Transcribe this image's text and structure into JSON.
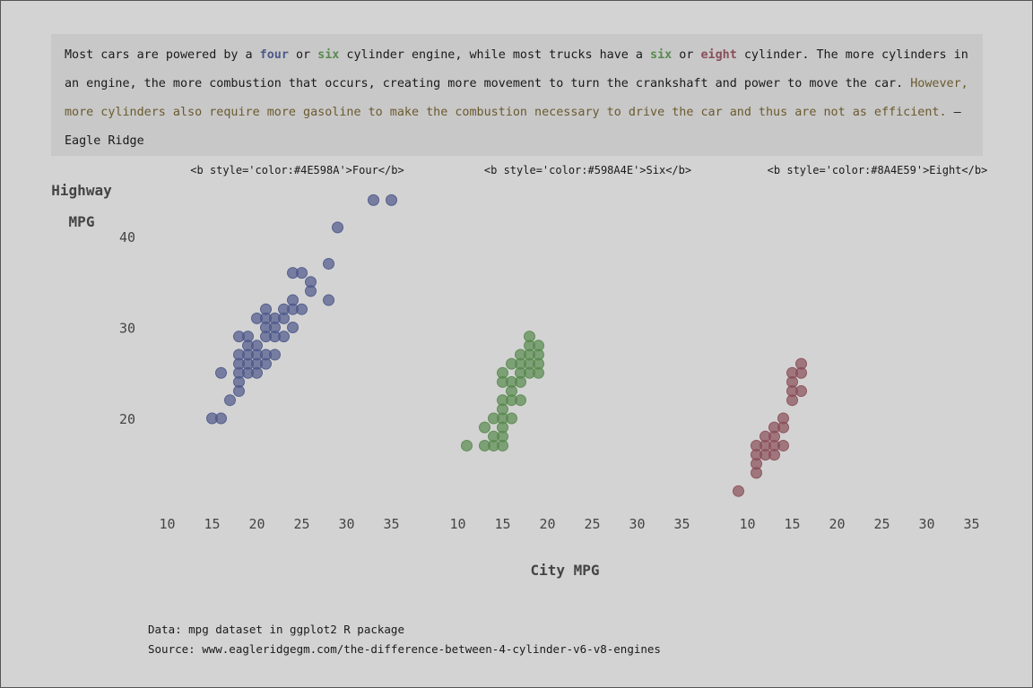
{
  "quote": {
    "p1": "Most cars are powered by a ",
    "four": "four",
    "p2": " or ",
    "six": "six",
    "p3": " cylinder engine, while most trucks have a ",
    "six2": "six",
    "p4": " or ",
    "eight": "eight",
    "p5": " cylinder. The more cylinders in an engine, the more combustion that occurs, creating more movement to turn the crankshaft and power to move the car. ",
    "however": "However, more cylinders also require more gasoline to make the combustion necessary to drive the car and thus are not as efficient.",
    "p6": " – Eagle Ridge"
  },
  "caption": {
    "line1": "Data: mpg dataset in ggplot2 R package",
    "line2": "Source: www.eagleridgegm.com/the-difference-between-4-cylinder-v6-v8-engines"
  },
  "chart_data": {
    "type": "scatter",
    "xlabel": "City MPG",
    "ylabel_line1": "Highway",
    "ylabel_line2": "MPG",
    "xlim": [
      9,
      36
    ],
    "ylim": [
      12,
      44
    ],
    "x_ticks": [
      10,
      15,
      20,
      25,
      30,
      35
    ],
    "y_ticks": [
      20,
      30,
      40
    ],
    "grid": false,
    "panels": [
      {
        "label": "<b style='color:#4E598A'>Four</b>",
        "color": "#4E598A",
        "points": [
          [
            15,
            20
          ],
          [
            16,
            20
          ],
          [
            17,
            22
          ],
          [
            18,
            23
          ],
          [
            18,
            24
          ],
          [
            16,
            25
          ],
          [
            18,
            25
          ],
          [
            19,
            25
          ],
          [
            20,
            25
          ],
          [
            18,
            26
          ],
          [
            19,
            26
          ],
          [
            20,
            26
          ],
          [
            21,
            26
          ],
          [
            18,
            27
          ],
          [
            19,
            27
          ],
          [
            20,
            27
          ],
          [
            21,
            27
          ],
          [
            22,
            27
          ],
          [
            19,
            28
          ],
          [
            20,
            28
          ],
          [
            18,
            29
          ],
          [
            19,
            29
          ],
          [
            21,
            29
          ],
          [
            22,
            29
          ],
          [
            23,
            29
          ],
          [
            21,
            30
          ],
          [
            22,
            30
          ],
          [
            24,
            30
          ],
          [
            20,
            31
          ],
          [
            21,
            31
          ],
          [
            22,
            31
          ],
          [
            23,
            31
          ],
          [
            21,
            32
          ],
          [
            23,
            32
          ],
          [
            24,
            32
          ],
          [
            25,
            32
          ],
          [
            24,
            33
          ],
          [
            28,
            33
          ],
          [
            26,
            34
          ],
          [
            26,
            35
          ],
          [
            24,
            36
          ],
          [
            25,
            36
          ],
          [
            28,
            37
          ],
          [
            29,
            41
          ],
          [
            33,
            44
          ],
          [
            35,
            44
          ]
        ]
      },
      {
        "label": "<b style='color:#598A4E'>Six</b>",
        "color": "#598A4E",
        "points": [
          [
            11,
            17
          ],
          [
            13,
            17
          ],
          [
            14,
            17
          ],
          [
            15,
            17
          ],
          [
            15,
            18
          ],
          [
            14,
            18
          ],
          [
            13,
            19
          ],
          [
            15,
            19
          ],
          [
            14,
            20
          ],
          [
            15,
            20
          ],
          [
            16,
            20
          ],
          [
            15,
            21
          ],
          [
            15,
            22
          ],
          [
            16,
            22
          ],
          [
            17,
            22
          ],
          [
            16,
            23
          ],
          [
            15,
            24
          ],
          [
            16,
            24
          ],
          [
            17,
            24
          ],
          [
            15,
            25
          ],
          [
            17,
            25
          ],
          [
            18,
            25
          ],
          [
            19,
            25
          ],
          [
            16,
            26
          ],
          [
            17,
            26
          ],
          [
            18,
            26
          ],
          [
            19,
            26
          ],
          [
            17,
            27
          ],
          [
            18,
            27
          ],
          [
            19,
            27
          ],
          [
            18,
            28
          ],
          [
            19,
            28
          ],
          [
            18,
            29
          ]
        ]
      },
      {
        "label": "<b style='color:#8A4E59'>Eight</b>",
        "color": "#8A4E59",
        "points": [
          [
            9,
            12
          ],
          [
            11,
            14
          ],
          [
            11,
            15
          ],
          [
            11,
            16
          ],
          [
            12,
            16
          ],
          [
            13,
            16
          ],
          [
            11,
            17
          ],
          [
            12,
            17
          ],
          [
            13,
            17
          ],
          [
            14,
            17
          ],
          [
            12,
            18
          ],
          [
            13,
            18
          ],
          [
            13,
            19
          ],
          [
            14,
            19
          ],
          [
            14,
            20
          ],
          [
            15,
            22
          ],
          [
            15,
            23
          ],
          [
            16,
            23
          ],
          [
            15,
            24
          ],
          [
            15,
            25
          ],
          [
            16,
            25
          ],
          [
            16,
            26
          ]
        ]
      }
    ]
  }
}
